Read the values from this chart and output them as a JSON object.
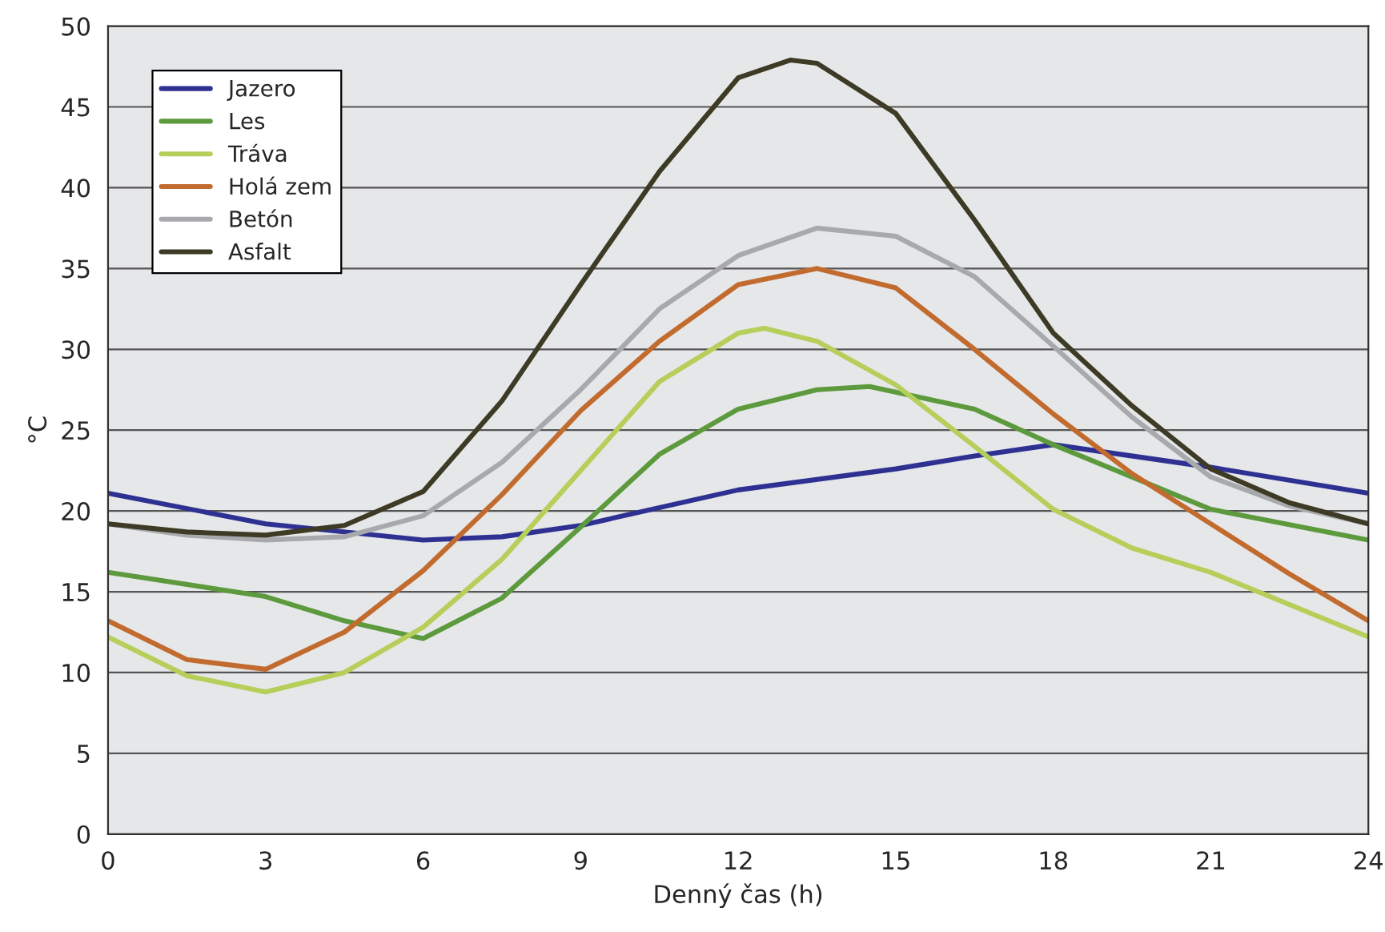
{
  "chart_data": {
    "type": "line",
    "xlabel": "Denný čas (h)",
    "ylabel": "°C",
    "xlim": [
      0,
      24
    ],
    "xticks": [
      0,
      3,
      6,
      9,
      12,
      15,
      18,
      21,
      24
    ],
    "ylim": [
      0,
      50
    ],
    "yticks": [
      0,
      5,
      10,
      15,
      20,
      25,
      30,
      35,
      40,
      45,
      50
    ],
    "grid": "y",
    "legend": "top left",
    "marker": "none",
    "line_style": "solid",
    "series": [
      {
        "name": "Jazero",
        "color": "#2e3192",
        "x": [
          0,
          3,
          6,
          7.5,
          9,
          12,
          15,
          16.5,
          18,
          21,
          24
        ],
        "values": [
          21.1,
          19.2,
          18.2,
          18.4,
          19.1,
          21.3,
          22.6,
          23.4,
          24.1,
          22.7,
          21.1
        ]
      },
      {
        "name": "Les",
        "color": "#5d9a3d",
        "x": [
          0,
          3,
          4.5,
          6,
          7.5,
          9,
          10.5,
          12,
          13.5,
          14.5,
          16.5,
          18,
          21,
          24
        ],
        "values": [
          16.2,
          14.7,
          13.2,
          12.1,
          14.6,
          19.0,
          23.5,
          26.3,
          27.5,
          27.7,
          26.3,
          24.1,
          20.1,
          18.2
        ]
      },
      {
        "name": "Tráva",
        "color": "#b5cf5a",
        "x": [
          0,
          1.5,
          3,
          4.5,
          6,
          7.5,
          9,
          10.5,
          12,
          12.5,
          13.5,
          15,
          16.5,
          18,
          19.5,
          21,
          22.5,
          24
        ],
        "values": [
          12.2,
          9.8,
          8.8,
          10,
          12.8,
          17,
          22.5,
          28,
          31,
          31.3,
          30.5,
          27.8,
          24,
          20.1,
          17.7,
          16.2,
          14.2,
          12.2
        ]
      },
      {
        "name": "Holá zem",
        "color": "#c26b2f",
        "x": [
          0,
          1.5,
          3,
          4.5,
          6,
          7.5,
          9,
          10.5,
          12,
          13.5,
          15,
          16.5,
          18,
          19.5,
          21,
          22.5,
          24
        ],
        "values": [
          13.2,
          10.8,
          10.2,
          12.5,
          16.3,
          21,
          26.2,
          30.5,
          34,
          35,
          33.8,
          30,
          26,
          22.3,
          19.2,
          16.1,
          13.2
        ]
      },
      {
        "name": "Betón",
        "color": "#a7a9ac",
        "x": [
          0,
          1.5,
          3,
          4.5,
          6,
          7.5,
          9,
          10.5,
          12,
          13.5,
          15,
          16.5,
          18,
          19.5,
          21,
          22.5,
          24
        ],
        "values": [
          19.2,
          18.5,
          18.2,
          18.4,
          19.7,
          23,
          27.5,
          32.5,
          35.8,
          37.5,
          37,
          34.5,
          30.2,
          25.8,
          22.1,
          20.3,
          19.2
        ]
      },
      {
        "name": "Asfalt",
        "color": "#3d3a25",
        "x": [
          0,
          1.5,
          3,
          4.5,
          6,
          7.5,
          9,
          10.5,
          12,
          13,
          13.5,
          15,
          16.5,
          18,
          19.5,
          21,
          22.5,
          24
        ],
        "values": [
          19.2,
          18.7,
          18.5,
          19.1,
          21.2,
          26.8,
          34,
          41,
          46.8,
          47.9,
          47.7,
          44.6,
          38,
          31,
          26.5,
          22.6,
          20.5,
          19.2
        ]
      }
    ]
  }
}
